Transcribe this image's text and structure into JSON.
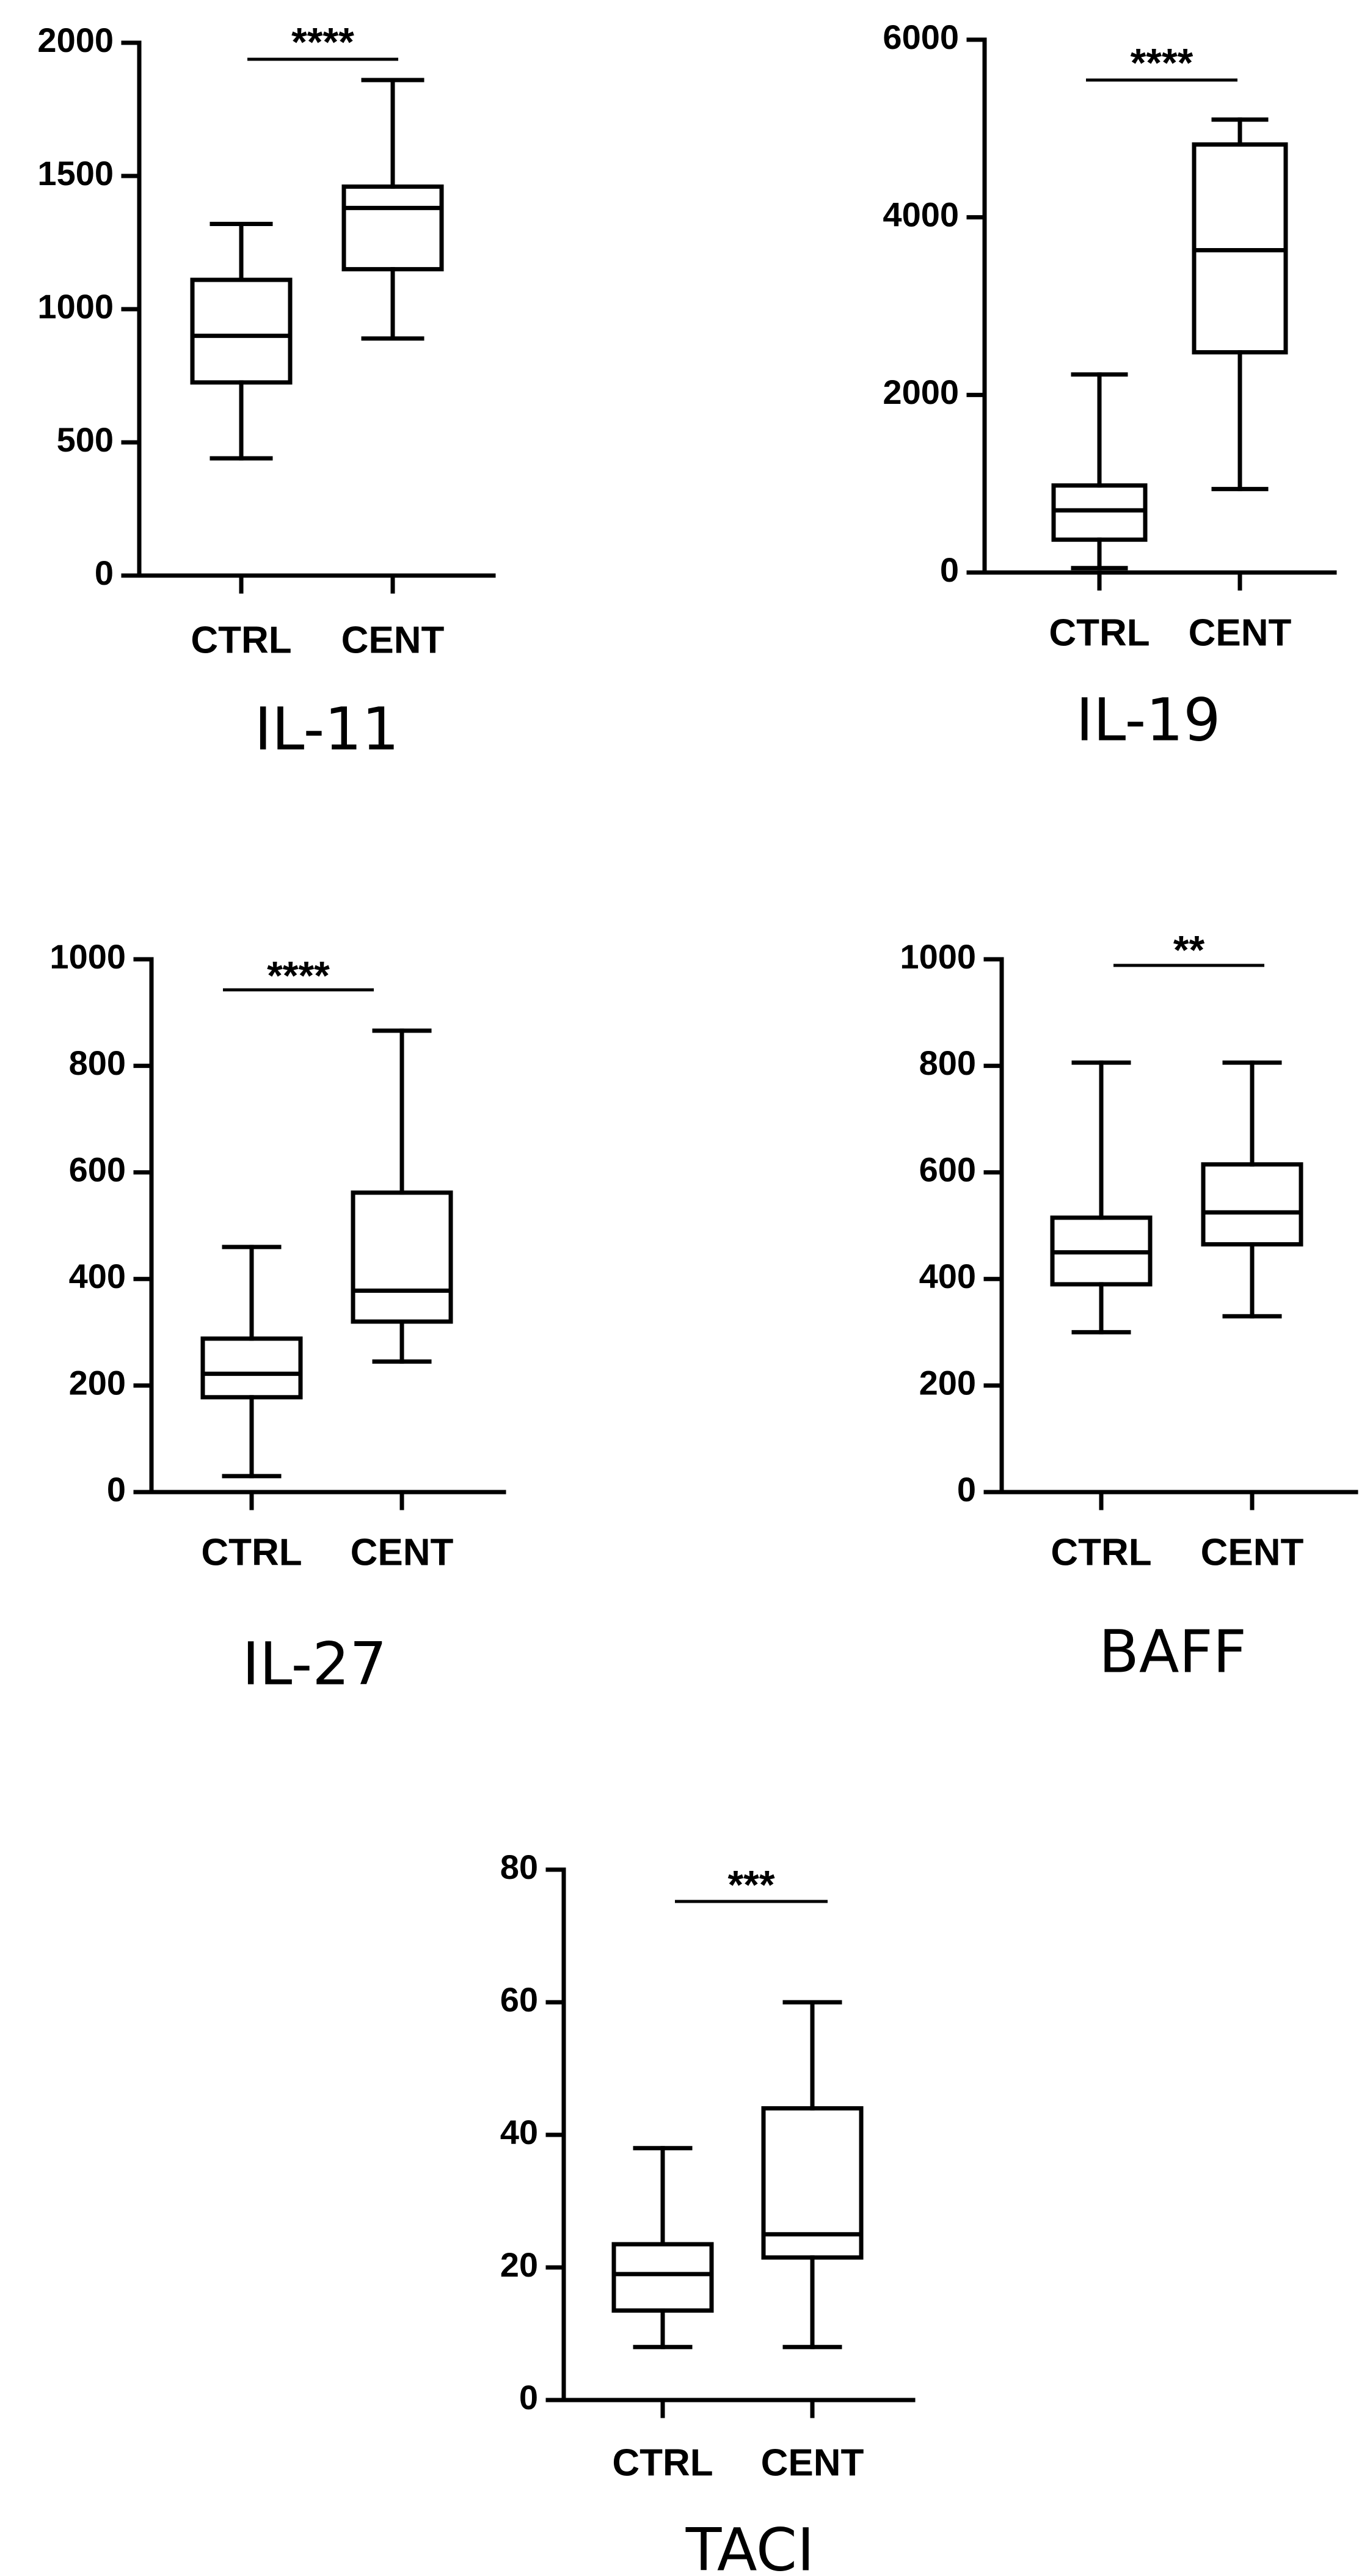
{
  "chart_data": [
    {
      "type": "boxplot",
      "title": "IL-11",
      "categories": [
        "CTRL",
        "CENT"
      ],
      "ylim": [
        0,
        2000
      ],
      "yticks": [
        0,
        500,
        1000,
        1500,
        2000
      ],
      "boxes": [
        {
          "category": "CTRL",
          "min": 440,
          "q1": 725,
          "median": 900,
          "q3": 1110,
          "max": 1320
        },
        {
          "category": "CENT",
          "min": 890,
          "q1": 1150,
          "median": 1380,
          "q3": 1460,
          "max": 1860
        }
      ],
      "significance": "****"
    },
    {
      "type": "boxplot",
      "title": "IL-19",
      "categories": [
        "CTRL",
        "CENT"
      ],
      "ylim": [
        0,
        6000
      ],
      "yticks": [
        0,
        2000,
        4000,
        6000
      ],
      "boxes": [
        {
          "category": "CTRL",
          "min": 50,
          "q1": 370,
          "median": 700,
          "q3": 980,
          "max": 2230
        },
        {
          "category": "CENT",
          "min": 940,
          "q1": 2480,
          "median": 3630,
          "q3": 4820,
          "max": 5100
        }
      ],
      "significance": "****"
    },
    {
      "type": "boxplot",
      "title": "IL-27",
      "categories": [
        "CTRL",
        "CENT"
      ],
      "ylim": [
        0,
        1000
      ],
      "yticks": [
        0,
        200,
        400,
        600,
        800,
        1000
      ],
      "boxes": [
        {
          "category": "CTRL",
          "min": 30,
          "q1": 178,
          "median": 222,
          "q3": 288,
          "max": 460
        },
        {
          "category": "CENT",
          "min": 245,
          "q1": 320,
          "median": 378,
          "q3": 562,
          "max": 866
        }
      ],
      "significance": "****"
    },
    {
      "type": "boxplot",
      "title": "BAFF",
      "categories": [
        "CTRL",
        "CENT"
      ],
      "ylim": [
        0,
        1000
      ],
      "yticks": [
        0,
        200,
        400,
        600,
        800,
        1000
      ],
      "boxes": [
        {
          "category": "CTRL",
          "min": 300,
          "q1": 390,
          "median": 450,
          "q3": 515,
          "max": 806
        },
        {
          "category": "CENT",
          "min": 330,
          "q1": 465,
          "median": 525,
          "q3": 615,
          "max": 806
        }
      ],
      "significance": "**"
    },
    {
      "type": "boxplot",
      "title": "TACI",
      "categories": [
        "CTRL",
        "CENT"
      ],
      "ylim": [
        0,
        80
      ],
      "yticks": [
        0,
        20,
        40,
        60,
        80
      ],
      "boxes": [
        {
          "category": "CTRL",
          "min": 8,
          "q1": 13.5,
          "median": 19,
          "q3": 23.5,
          "max": 38
        },
        {
          "category": "CENT",
          "min": 8,
          "q1": 21.5,
          "median": 25,
          "q3": 44,
          "max": 60
        }
      ],
      "significance": "***"
    }
  ]
}
